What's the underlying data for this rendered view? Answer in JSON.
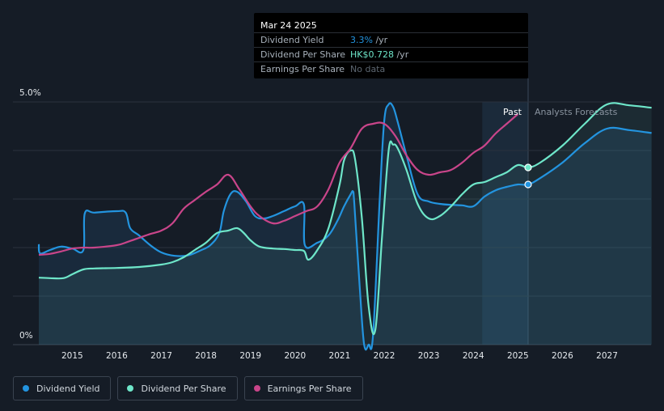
{
  "tooltip": {
    "date": "Mar 24 2025",
    "rows": [
      {
        "label": "Dividend Yield",
        "value": "3.3%",
        "unit": " /yr",
        "color": "#2394df"
      },
      {
        "label": "Dividend Per Share",
        "value": "HK$0.728",
        "unit": " /yr",
        "color": "#6ee6c9"
      },
      {
        "label": "Earnings Per Share",
        "value": "No data",
        "unit": "",
        "color": "#5c6670"
      }
    ]
  },
  "legend": [
    {
      "label": "Dividend Yield",
      "color": "#2394df"
    },
    {
      "label": "Dividend Per Share",
      "color": "#6ee6c9"
    },
    {
      "label": "Earnings Per Share",
      "color": "#c9458a"
    }
  ],
  "chart_data": {
    "type": "line",
    "title": "",
    "xlabel": "",
    "ylabel": "",
    "ylim": [
      0,
      5
    ],
    "y_tick_labels": [
      "5.0%",
      "0%"
    ],
    "x_tick_labels": [
      "2015",
      "2016",
      "2017",
      "2018",
      "2019",
      "2020",
      "2021",
      "2022",
      "2023",
      "2024",
      "2025",
      "2026",
      "2027"
    ],
    "xlim": [
      2014.25,
      2028.0
    ],
    "region_labels": {
      "past": "Past",
      "forecast": "Analysts Forecasts"
    },
    "forecast_start": 2025.23,
    "forecast_band_start": 2024.2,
    "grid": true,
    "legend_position": "bottom-left",
    "colors": {
      "dividend_yield": "#2394df",
      "dividend_per_share": "#6ee6c9",
      "earnings_per_share": "#c9458a"
    },
    "series": [
      {
        "name": "Dividend Yield",
        "x": [
          2014.25,
          2014.28,
          2014.5,
          2014.75,
          2015.0,
          2015.25,
          2015.28,
          2015.5,
          2016.0,
          2016.2,
          2016.3,
          2016.5,
          2016.75,
          2017.0,
          2017.3,
          2017.6,
          2017.9,
          2018.1,
          2018.3,
          2018.4,
          2018.55,
          2018.7,
          2018.9,
          2019.1,
          2019.3,
          2019.5,
          2019.75,
          2020.0,
          2020.2,
          2020.22,
          2020.5,
          2020.75,
          2020.95,
          2021.1,
          2021.25,
          2021.3,
          2021.33,
          2021.45,
          2021.55,
          2021.65,
          2021.75,
          2021.9,
          2022.0,
          2022.1,
          2022.2,
          2022.3,
          2022.5,
          2022.75,
          2023.0,
          2023.25,
          2023.5,
          2023.75,
          2024.0,
          2024.25,
          2024.5,
          2024.75,
          2025.0,
          2025.23,
          2025.5,
          2026.0,
          2026.5,
          2027.0,
          2027.5,
          2028.0
        ],
        "y": [
          2.07,
          1.88,
          1.95,
          2.02,
          1.98,
          1.95,
          2.7,
          2.72,
          2.75,
          2.72,
          2.4,
          2.25,
          2.05,
          1.9,
          1.83,
          1.84,
          1.95,
          2.05,
          2.3,
          2.75,
          3.1,
          3.15,
          2.95,
          2.65,
          2.6,
          2.65,
          2.75,
          2.85,
          2.88,
          2.05,
          2.1,
          2.25,
          2.55,
          2.85,
          3.1,
          3.15,
          2.9,
          1.2,
          0.0,
          0.0,
          0.2,
          3.0,
          4.6,
          4.95,
          4.9,
          4.6,
          3.9,
          3.1,
          2.95,
          2.9,
          2.88,
          2.87,
          2.85,
          3.05,
          3.18,
          3.25,
          3.3,
          3.3,
          3.43,
          3.75,
          4.15,
          4.45,
          4.42,
          4.36
        ]
      },
      {
        "name": "Dividend Per Share",
        "x": [
          2014.25,
          2014.5,
          2014.8,
          2015.0,
          2015.25,
          2015.5,
          2016.0,
          2016.5,
          2017.0,
          2017.25,
          2017.5,
          2017.75,
          2018.0,
          2018.25,
          2018.5,
          2018.7,
          2018.85,
          2019.0,
          2019.2,
          2019.5,
          2019.75,
          2020.0,
          2020.2,
          2020.3,
          2020.5,
          2020.75,
          2021.0,
          2021.1,
          2021.25,
          2021.35,
          2021.5,
          2021.65,
          2021.8,
          2021.95,
          2022.1,
          2022.2,
          2022.3,
          2022.5,
          2022.75,
          2023.0,
          2023.25,
          2023.5,
          2023.75,
          2024.0,
          2024.25,
          2024.5,
          2024.75,
          2025.0,
          2025.23,
          2025.5,
          2026.0,
          2026.5,
          2027.0,
          2027.5,
          2028.0
        ],
        "y": [
          1.38,
          1.37,
          1.37,
          1.45,
          1.55,
          1.57,
          1.58,
          1.6,
          1.65,
          1.7,
          1.8,
          1.95,
          2.1,
          2.3,
          2.35,
          2.4,
          2.3,
          2.15,
          2.02,
          1.98,
          1.97,
          1.95,
          1.93,
          1.75,
          1.95,
          2.4,
          3.3,
          3.8,
          4.0,
          3.8,
          2.6,
          0.8,
          0.3,
          2.2,
          4.0,
          4.12,
          4.05,
          3.6,
          2.9,
          2.6,
          2.65,
          2.85,
          3.1,
          3.3,
          3.35,
          3.45,
          3.55,
          3.7,
          3.65,
          3.75,
          4.1,
          4.55,
          4.95,
          4.93,
          4.88
        ]
      },
      {
        "name": "Earnings Per Share",
        "x": [
          2014.25,
          2014.5,
          2014.75,
          2015.0,
          2015.25,
          2015.5,
          2016.0,
          2016.25,
          2016.5,
          2016.75,
          2017.0,
          2017.25,
          2017.5,
          2017.75,
          2018.0,
          2018.25,
          2018.5,
          2018.75,
          2019.0,
          2019.2,
          2019.5,
          2019.75,
          2020.0,
          2020.25,
          2020.5,
          2020.75,
          2021.0,
          2021.25,
          2021.5,
          2021.75,
          2022.0,
          2022.25,
          2022.5,
          2022.75,
          2023.0,
          2023.25,
          2023.5,
          2023.75,
          2024.0,
          2024.25,
          2024.5,
          2024.75,
          2025.0
        ],
        "y": [
          1.85,
          1.87,
          1.92,
          1.98,
          2.0,
          2.0,
          2.05,
          2.12,
          2.2,
          2.28,
          2.35,
          2.5,
          2.8,
          2.98,
          3.15,
          3.3,
          3.5,
          3.2,
          2.85,
          2.65,
          2.5,
          2.55,
          2.65,
          2.75,
          2.85,
          3.2,
          3.75,
          4.05,
          4.45,
          4.55,
          4.55,
          4.3,
          3.9,
          3.6,
          3.5,
          3.55,
          3.6,
          3.75,
          3.95,
          4.1,
          4.35,
          4.55,
          4.75
        ]
      }
    ]
  }
}
